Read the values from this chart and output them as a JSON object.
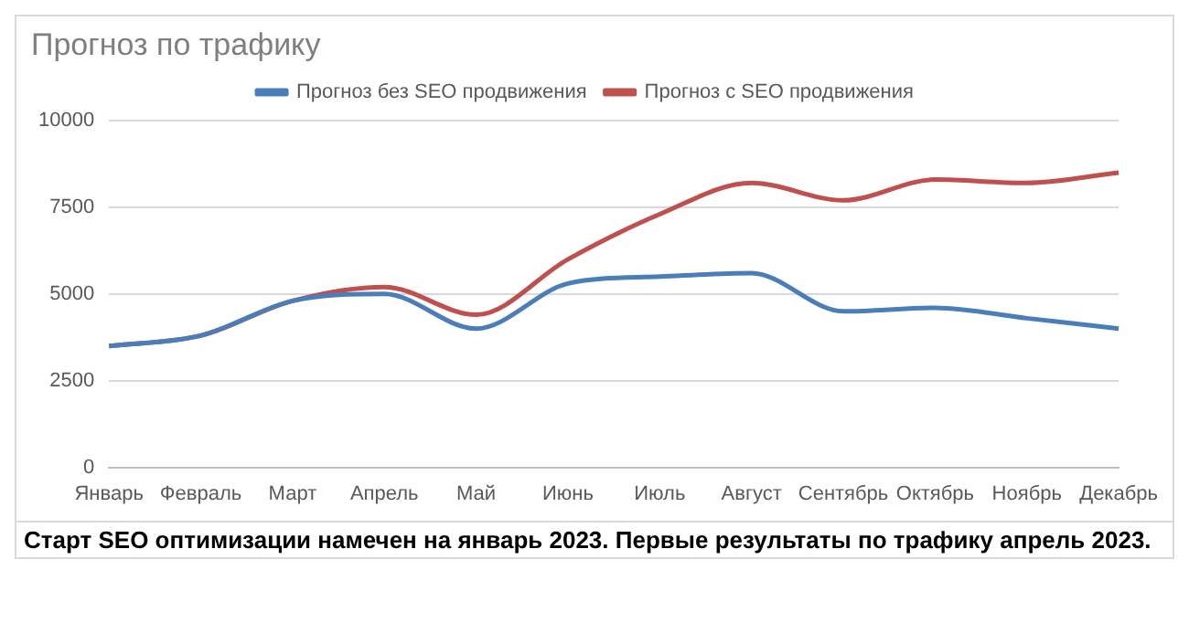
{
  "chart_data": {
    "type": "line",
    "title": "Прогноз по трафику",
    "categories": [
      "Январь",
      "Февраль",
      "Март",
      "Апрель",
      "Май",
      "Июнь",
      "Июль",
      "Август",
      "Сентябрь",
      "Октябрь",
      "Ноябрь",
      "Декабрь"
    ],
    "series": [
      {
        "name": "Прогноз без SEO продвижения",
        "color": "#4a7ebb",
        "values": [
          3500,
          3800,
          4800,
          5000,
          4000,
          5300,
          5500,
          5600,
          4500,
          4600,
          4300,
          4000
        ]
      },
      {
        "name": "Прогноз с SEO продвижения",
        "color": "#c0504d",
        "values": [
          3500,
          3800,
          4800,
          5200,
          4400,
          6000,
          7300,
          8200,
          7700,
          8300,
          8200,
          8500
        ]
      }
    ],
    "ylim": [
      0,
      10000
    ],
    "yticks": [
      0,
      2500,
      5000,
      7500,
      10000
    ],
    "grid": "y",
    "legend": "top",
    "marker": "none",
    "annotations": [
      "Старт SEO оптимизации намечен на январь 2023. Первые результаты по трафику апрель 2023."
    ]
  }
}
